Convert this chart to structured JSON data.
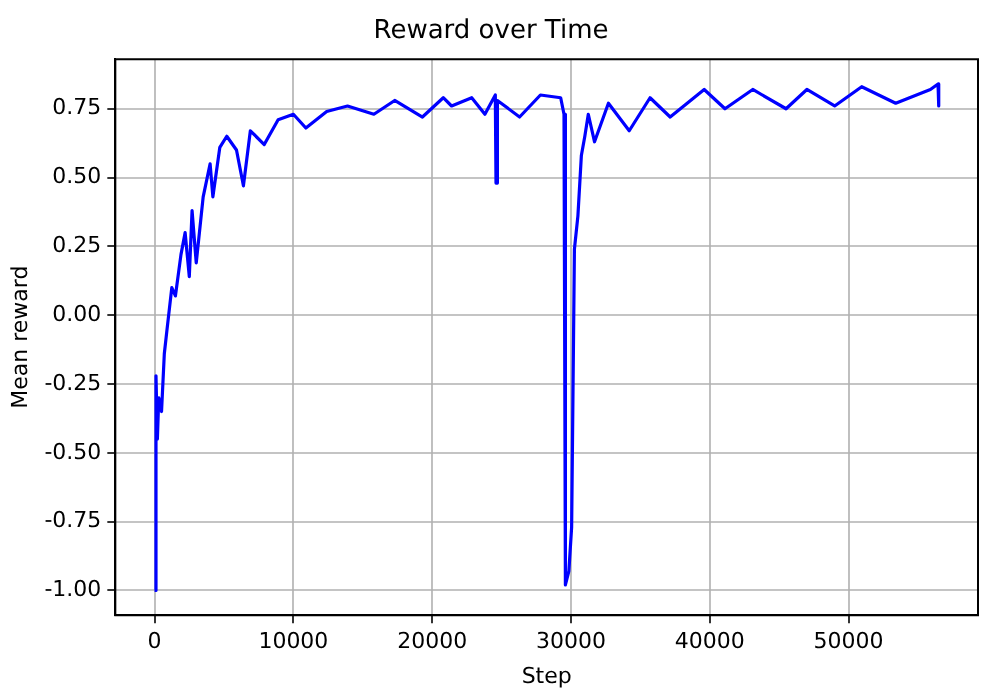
{
  "chart_data": {
    "type": "line",
    "title": "Reward over Time",
    "xlabel": "Step",
    "ylabel": "Mean reward",
    "x": [
      0,
      100,
      200,
      300,
      500,
      700,
      900,
      1240,
      1500,
      1900,
      2200,
      2500,
      2700,
      3000,
      3500,
      4000,
      4200,
      4700,
      5200,
      5900,
      6400,
      6900,
      7900,
      8900,
      10000,
      10900,
      12400,
      13900,
      15800,
      17300,
      19300,
      20800,
      21400,
      22850,
      23800,
      24550,
      24600,
      24700,
      26300,
      27800,
      29260,
      29500,
      29600,
      29850,
      30050,
      30250,
      30500,
      30750,
      31000,
      31250,
      31700,
      32700,
      34200,
      35700,
      37150,
      39600,
      41100,
      43100,
      45500,
      47000,
      49000,
      50950,
      53400,
      55900,
      56450,
      56500
    ],
    "series": [
      {
        "color": "#0000ff",
        "values": [
          -1.0,
          -0.22,
          -0.45,
          -0.3,
          -0.35,
          -0.14,
          -0.05,
          0.1,
          0.07,
          0.22,
          0.3,
          0.14,
          0.38,
          0.19,
          0.43,
          0.55,
          0.43,
          0.61,
          0.65,
          0.6,
          0.47,
          0.67,
          0.62,
          0.71,
          0.73,
          0.68,
          0.74,
          0.76,
          0.73,
          0.78,
          0.72,
          0.79,
          0.76,
          0.79,
          0.73,
          0.8,
          0.48,
          0.78,
          0.72,
          0.8,
          0.79,
          0.73,
          -0.98,
          -0.93,
          -0.77,
          0.24,
          0.36,
          0.58,
          0.65,
          0.73,
          0.63,
          0.77,
          0.67,
          0.79,
          0.72,
          0.82,
          0.75,
          0.82,
          0.75,
          0.82,
          0.76,
          0.83,
          0.77,
          0.82,
          0.84,
          0.76
        ]
      }
    ],
    "xlim": [
      -2830,
      59330
    ],
    "ylim": [
      -1.09,
      0.93
    ],
    "xticks": [
      0,
      10000,
      20000,
      30000,
      40000,
      50000
    ],
    "yticks": [
      {
        "value": -1,
        "label": "-1.00"
      },
      {
        "value": -0.75,
        "label": "-0.75"
      },
      {
        "value": -0.5,
        "label": "-0.50"
      },
      {
        "value": -0.25,
        "label": "-0.25"
      },
      {
        "value": 0,
        "label": "0.00"
      },
      {
        "value": 0.25,
        "label": "0.25"
      },
      {
        "value": 0.5,
        "label": "0.50"
      },
      {
        "value": 0.75,
        "label": "0.75"
      }
    ],
    "grid": true,
    "legend": false,
    "marker": "none",
    "line_style": "solid"
  }
}
